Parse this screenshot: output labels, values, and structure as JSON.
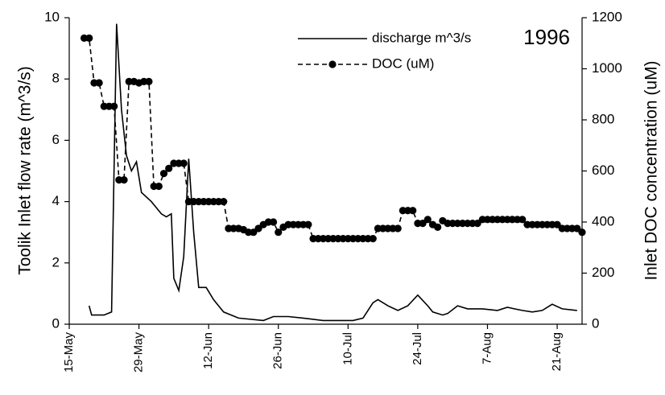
{
  "chart_data": {
    "type": "line",
    "y_label": "Toolik Inlet flow rate (m^3/s)",
    "y2_label": "Inlet DOC concentration (uM)",
    "annotation": "1996",
    "xlim": [
      136,
      239
    ],
    "xticks": [
      {
        "value": 136,
        "label": "15-May"
      },
      {
        "value": 150,
        "label": "29-May"
      },
      {
        "value": 164,
        "label": "12-Jun"
      },
      {
        "value": 178,
        "label": "26-Jun"
      },
      {
        "value": 192,
        "label": "10-Jul"
      },
      {
        "value": 206,
        "label": "24-Jul"
      },
      {
        "value": 220,
        "label": "7-Aug"
      },
      {
        "value": 234,
        "label": "21-Aug"
      }
    ],
    "ylim": [
      0,
      10
    ],
    "yticks": [
      0,
      2,
      4,
      6,
      8,
      10
    ],
    "y2lim": [
      0,
      1200
    ],
    "y2ticks": [
      0,
      200,
      400,
      600,
      800,
      1000,
      1200
    ],
    "legend": "upper right",
    "series": [
      {
        "name": "discharge m^3/s",
        "color": "#000000",
        "style": "solid",
        "x": [
          140,
          140.5,
          143,
          144.5,
          145.5,
          146.5,
          147.5,
          148.5,
          149.5,
          150.5,
          152.5,
          154.5,
          155.5,
          156.5,
          157,
          158,
          159,
          160,
          161,
          162,
          163.5,
          165,
          167,
          170,
          175,
          177,
          180,
          183,
          187,
          193,
          195,
          197,
          198,
          200,
          202,
          204,
          206,
          208,
          209,
          211,
          212,
          214,
          216,
          219,
          222,
          224,
          227,
          229,
          231,
          233,
          235,
          238
        ],
        "values": [
          0.6,
          0.3,
          0.3,
          0.4,
          9.8,
          7,
          5.5,
          5,
          5.3,
          4.3,
          4,
          3.6,
          3.5,
          3.6,
          1.5,
          1.1,
          2.2,
          5.4,
          3,
          1.2,
          1.2,
          0.8,
          0.4,
          0.2,
          0.12,
          0.25,
          0.25,
          0.2,
          0.12,
          0.12,
          0.2,
          0.7,
          0.8,
          0.6,
          0.45,
          0.6,
          0.95,
          0.6,
          0.4,
          0.3,
          0.35,
          0.6,
          0.5,
          0.5,
          0.45,
          0.55,
          0.45,
          0.4,
          0.45,
          0.65,
          0.5,
          0.45
        ]
      },
      {
        "name": "DOC (uM)",
        "color": "#000000",
        "style": "dashed",
        "marker": "circle",
        "axis": "y2",
        "x": [
          139,
          140,
          141,
          142,
          143,
          144,
          145,
          146,
          147,
          148,
          149,
          150,
          151,
          152,
          153,
          154,
          155,
          156,
          157,
          158,
          159,
          160,
          161,
          162,
          163,
          164,
          165,
          166,
          167,
          168,
          169,
          170,
          171,
          172,
          173,
          174,
          175,
          176,
          177,
          178,
          179,
          180,
          181,
          182,
          183,
          184,
          185,
          186,
          187,
          188,
          189,
          190,
          191,
          192,
          193,
          194,
          195,
          196,
          197,
          198,
          199,
          200,
          201,
          202,
          203,
          204,
          205,
          206,
          207,
          208,
          209,
          210,
          211,
          212,
          213,
          214,
          215,
          216,
          217,
          218,
          219,
          220,
          221,
          222,
          223,
          224,
          225,
          226,
          227,
          228,
          229,
          230,
          231,
          232,
          233,
          234,
          235,
          236,
          237,
          238,
          239
        ],
        "values": [
          1120,
          1120,
          945,
          945,
          853,
          853,
          853,
          565,
          565,
          950,
          950,
          945,
          950,
          950,
          540,
          540,
          590,
          610,
          630,
          630,
          630,
          480,
          480,
          480,
          480,
          480,
          480,
          480,
          480,
          375,
          375,
          375,
          370,
          360,
          360,
          375,
          390,
          400,
          400,
          360,
          380,
          390,
          390,
          390,
          390,
          390,
          335,
          335,
          335,
          335,
          335,
          335,
          335,
          335,
          335,
          335,
          335,
          335,
          335,
          375,
          375,
          375,
          375,
          375,
          445,
          445,
          445,
          395,
          395,
          410,
          390,
          380,
          405,
          395,
          395,
          395,
          395,
          395,
          395,
          395,
          410,
          410,
          410,
          410,
          410,
          410,
          410,
          410,
          410,
          390,
          390,
          390,
          390,
          390,
          390,
          390,
          375,
          375,
          375,
          375,
          360
        ]
      }
    ]
  }
}
